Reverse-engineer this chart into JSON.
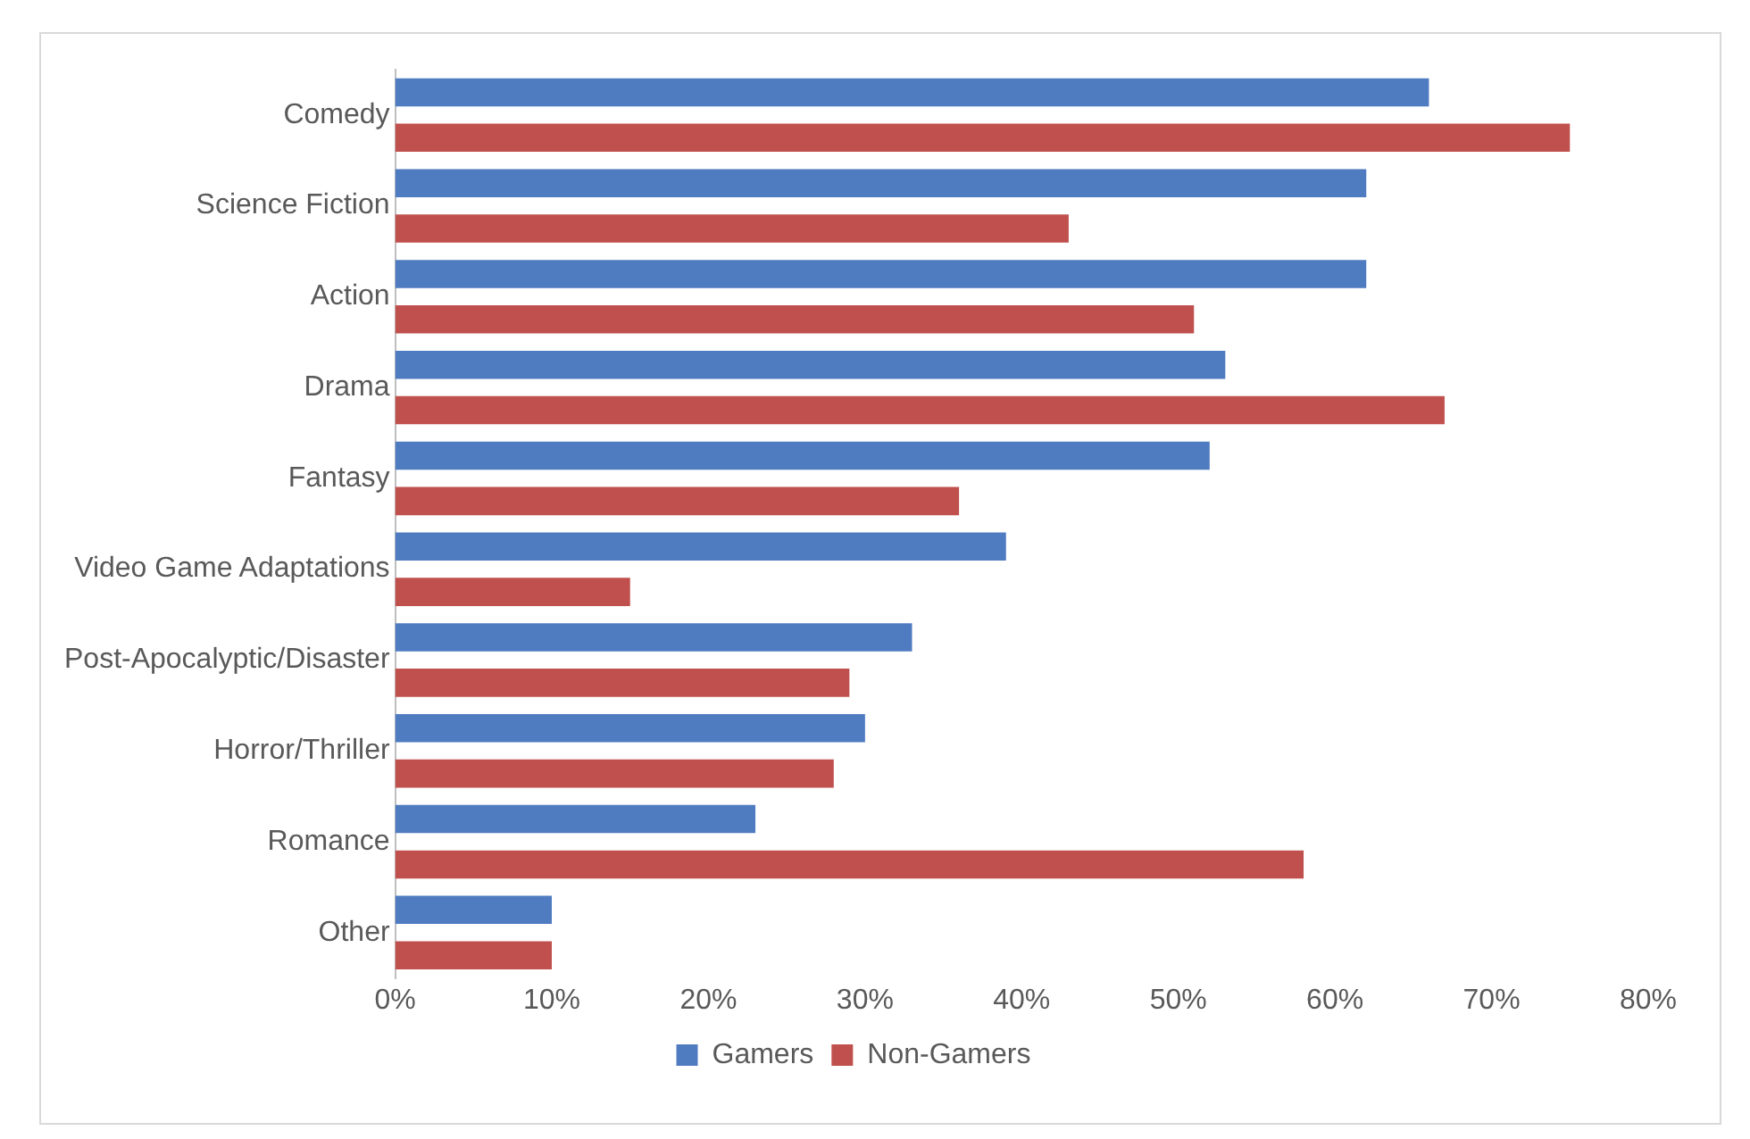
{
  "chart_data": {
    "type": "bar",
    "orientation": "horizontal",
    "categories": [
      "Comedy",
      "Science Fiction",
      "Action",
      "Drama",
      "Fantasy",
      "Video Game Adaptations",
      "Post-Apocalyptic/Disaster",
      "Horror/Thriller",
      "Romance",
      "Other"
    ],
    "series": [
      {
        "name": "Gamers",
        "color": "#4f7bc1",
        "values": [
          66,
          62,
          62,
          53,
          52,
          39,
          33,
          30,
          23,
          10
        ]
      },
      {
        "name": "Non-Gamers",
        "color": "#c0504d",
        "values": [
          75,
          43,
          51,
          67,
          36,
          15,
          29,
          28,
          58,
          10
        ]
      }
    ],
    "xlim": [
      0,
      80
    ],
    "xticks": [
      {
        "value": 0,
        "label": "0%"
      },
      {
        "value": 10,
        "label": "10%"
      },
      {
        "value": 20,
        "label": "20%"
      },
      {
        "value": 30,
        "label": "30%"
      },
      {
        "value": 40,
        "label": "40%"
      },
      {
        "value": 50,
        "label": "50%"
      },
      {
        "value": 60,
        "label": "60%"
      },
      {
        "value": 70,
        "label": "70%"
      },
      {
        "value": 80,
        "label": "80%"
      }
    ],
    "grid": false,
    "legend": "bottom"
  }
}
